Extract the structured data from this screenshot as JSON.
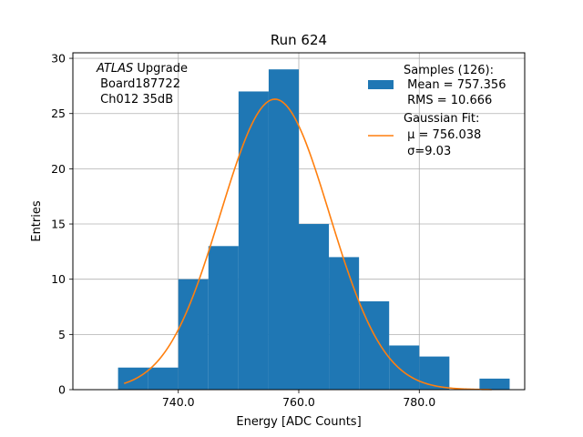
{
  "chart_data": {
    "type": "bar",
    "title": "Run 624",
    "xlabel": "Energy [ADC Counts]",
    "ylabel": "Entries",
    "xlim": [
      722.5,
      797.5
    ],
    "ylim": [
      0,
      30.5
    ],
    "xticks": [
      740.0,
      760.0,
      780.0
    ],
    "xtick_labels": [
      "740.0",
      "760.0",
      "780.0"
    ],
    "yticks": [
      0,
      5,
      10,
      15,
      20,
      25,
      30
    ],
    "ytick_labels": [
      "0",
      "5",
      "10",
      "15",
      "20",
      "25",
      "30"
    ],
    "grid": true,
    "bar_color": "#1f77b4",
    "fit_color": "#ff7f0e",
    "histogram": {
      "bin_edges": [
        730,
        735,
        740,
        745,
        750,
        755,
        760,
        765,
        770,
        775,
        780,
        785,
        790,
        795
      ],
      "counts": [
        2,
        2,
        10,
        13,
        27,
        29,
        15,
        12,
        8,
        4,
        3,
        0,
        1
      ]
    },
    "gaussian_fit": {
      "mu": 756.038,
      "sigma": 9.03,
      "amplitude": 26.3,
      "x_range": [
        731,
        792
      ]
    },
    "annotation_lines": [
      "ATLAS Upgrade",
      " Board187722",
      " Ch012 35dB"
    ],
    "annotation_italic_word": "ATLAS",
    "legend": {
      "placement": "top-right",
      "entries": [
        {
          "kind": "patch",
          "lines": [
            "Samples (126):",
            " Mean = 757.356",
            " RMS = 10.666"
          ]
        },
        {
          "kind": "line",
          "lines": [
            "Gaussian Fit:",
            " μ = 756.038",
            " σ=9.03"
          ]
        }
      ]
    }
  }
}
